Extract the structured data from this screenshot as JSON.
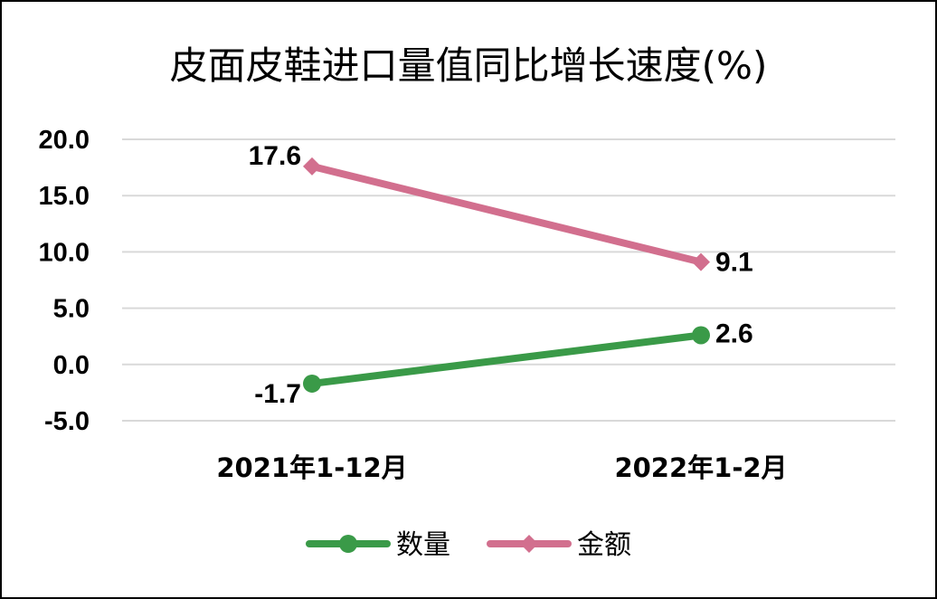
{
  "chart_data": {
    "type": "line",
    "title": "皮面皮鞋进口量值同比增长速度(%)",
    "categories": [
      "2021年1-12月",
      "2022年1-2月"
    ],
    "series": [
      {
        "name": "数量",
        "values": [
          -1.7,
          2.6
        ],
        "color": "#3a9a48",
        "marker": "circle"
      },
      {
        "name": "金额",
        "values": [
          17.6,
          9.1
        ],
        "color": "#d26f8e",
        "marker": "diamond"
      }
    ],
    "data_labels": [
      [
        "-1.7",
        "2.6"
      ],
      [
        "17.6",
        "9.1"
      ]
    ],
    "ylim": [
      -5,
      20
    ],
    "yticks": [
      "20.0",
      "15.0",
      "10.0",
      "5.0",
      "0.0",
      "-5.0"
    ],
    "ytick_values": [
      20,
      15,
      10,
      5,
      0,
      -5
    ],
    "xlabel": "",
    "ylabel": "",
    "grid": true,
    "legend_position": "bottom"
  }
}
